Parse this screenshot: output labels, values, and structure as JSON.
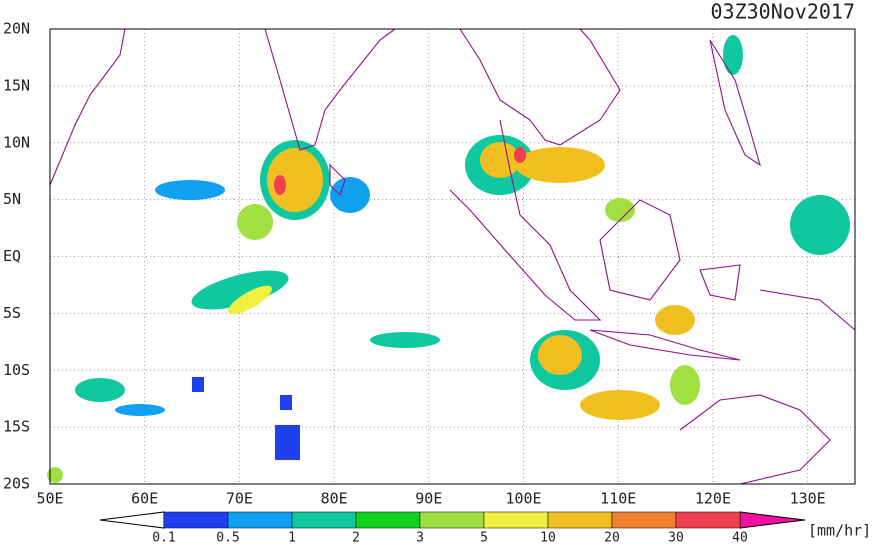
{
  "title": "03Z30Nov2017",
  "map": {
    "lat_labels": [
      "20N",
      "15N",
      "10N",
      "5N",
      "EQ",
      "5S",
      "10S",
      "15S",
      "20S"
    ],
    "lon_labels": [
      "50E",
      "60E",
      "70E",
      "80E",
      "90E",
      "100E",
      "110E",
      "120E",
      "130E"
    ]
  },
  "colorbar": {
    "labels": [
      "0.1",
      "0.5",
      "1",
      "2",
      "3",
      "5",
      "10",
      "20",
      "30",
      "40"
    ],
    "colors": [
      "#2040f0",
      "#10a0f0",
      "#10c8a0",
      "#10d020",
      "#a0e040",
      "#f0f040",
      "#f0c020",
      "#f08030",
      "#f04050"
    ],
    "unit": "[mm/hr]"
  }
}
